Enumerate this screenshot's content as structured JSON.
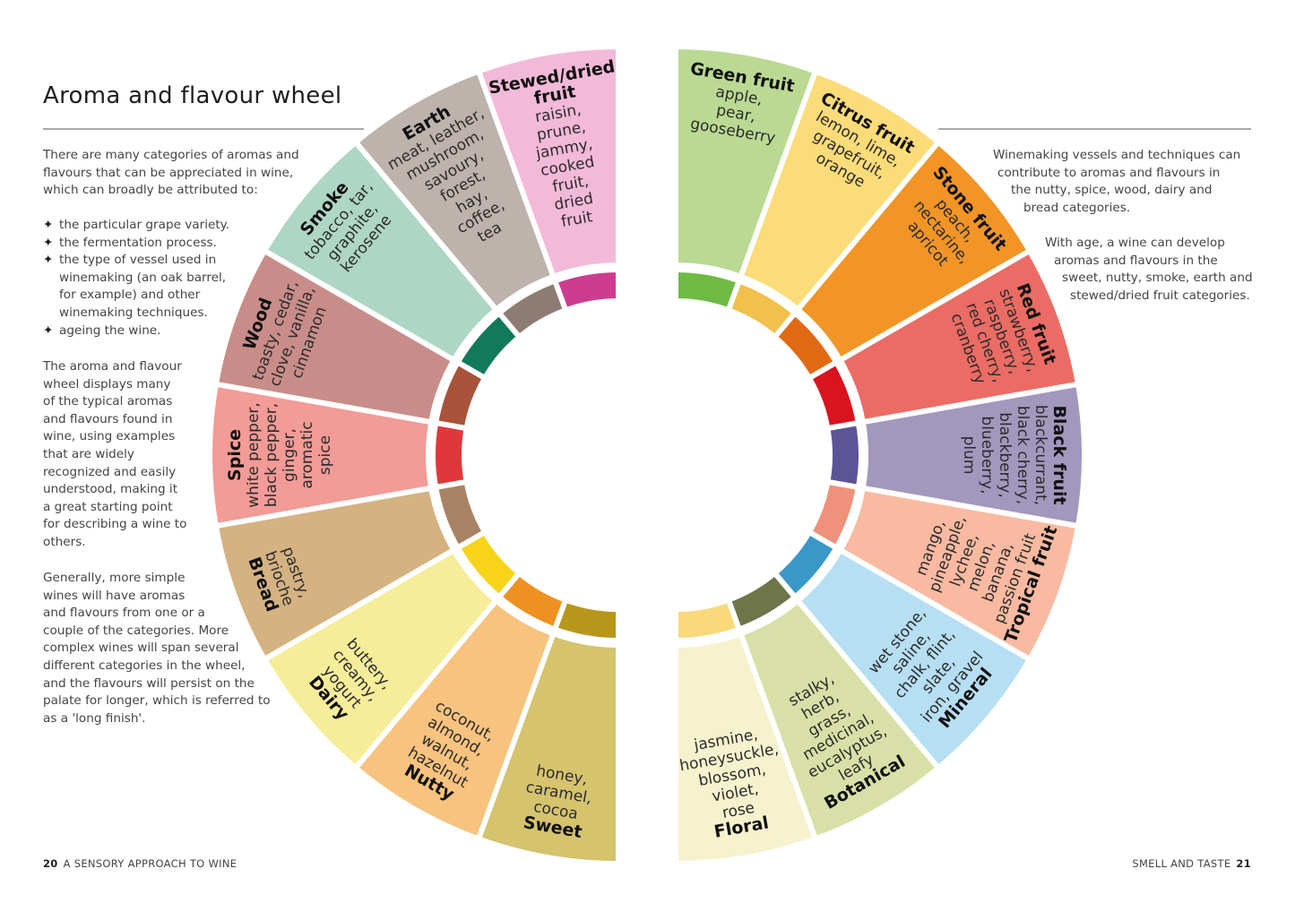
{
  "left_page": {
    "title": "Aroma and flavour wheel",
    "intro_lines": [
      "There are many categories of aromas and",
      "flavours that can be appreciated in wine,",
      "which can broadly be attributed to:"
    ],
    "bullets": [
      [
        "the particular grape variety."
      ],
      [
        "the fermentation process."
      ],
      [
        "the type of vessel used in",
        "winemaking (an oak barrel,",
        "for example) and other",
        "winemaking techniques."
      ],
      [
        "ageing the wine."
      ]
    ],
    "bullet_icon": "four-point-star-icon",
    "para2_lines": [
      "The aroma and flavour",
      "wheel displays many",
      "of the typical aromas",
      "and flavours found in",
      "wine, using examples",
      "that are widely",
      "recognized and easily",
      "understood, making it",
      "a great starting point",
      "for describing a wine to",
      "others."
    ],
    "para3_lines": [
      "Generally, more simple",
      "wines will have aromas",
      "and flavours from one or a",
      "couple of the categories. More",
      "complex wines will span several",
      "different categories in the wheel,",
      "and the flavours will persist on the",
      "palate for longer, which is referred to",
      "as a 'long finish'."
    ],
    "page_number": "20",
    "running_head": "A SENSORY APPROACH TO WINE"
  },
  "right_page": {
    "para1_lines": [
      "Winemaking vessels and techniques can",
      "contribute to aromas and flavours in",
      "the nutty, spice, wood, dairy and",
      "bread categories."
    ],
    "para2_lines": [
      "With age, a wine can develop",
      "aromas and flavours in the",
      "sweet, nutty, smoke, earth and",
      "stewed/dried fruit categories."
    ],
    "page_number": "21",
    "running_head": "SMELL AND TASTE"
  },
  "wheel": {
    "left": [
      {
        "title": [
          "Stewed/dried",
          "fruit"
        ],
        "desc": [
          "raisin,",
          "prune,",
          "jammy,",
          "cooked",
          "fruit,",
          "dried",
          "fruit"
        ],
        "color": "#f3b9d8",
        "ring": "#cc3d8f"
      },
      {
        "title": [
          "Earth"
        ],
        "desc": [
          "meat, leather,",
          "mushroom,",
          "savoury,",
          "forest,",
          "hay,",
          "coffee,",
          "tea"
        ],
        "color": "#bdb2ac",
        "ring": "#8e7c74"
      },
      {
        "title": [
          "Smoke"
        ],
        "desc": [
          "tobacco, tar,",
          "graphite,",
          "kerosene"
        ],
        "color": "#aed6c5",
        "ring": "#127a5b"
      },
      {
        "title": [
          "Wood"
        ],
        "desc": [
          "toasty, cedar,",
          "clove, vanilla,",
          "cinnamon"
        ],
        "color": "#c98d89",
        "ring": "#a8533a"
      },
      {
        "title": [
          "Spice"
        ],
        "desc": [
          "white pepper,",
          "black pepper,",
          "ginger,",
          "aromatic",
          "spice"
        ],
        "color": "#f29b97",
        "ring": "#e0383a"
      },
      {
        "title": [
          "Bread"
        ],
        "desc": [
          "pastry,",
          "brioche"
        ],
        "color": "#d4b282",
        "ring": "#a88366"
      },
      {
        "title": [
          "Dairy"
        ],
        "desc": [
          "buttery,",
          "creamy,",
          "yogurt"
        ],
        "color": "#f6ed9b",
        "ring": "#f7d41a"
      },
      {
        "title": [
          "Nutty"
        ],
        "desc": [
          "coconut,",
          "almond,",
          "walnut,",
          "hazelnut"
        ],
        "color": "#f8c37f",
        "ring": "#ef9120"
      },
      {
        "title": [
          "Sweet"
        ],
        "desc": [
          "honey,",
          "caramel,",
          "cocoa"
        ],
        "color": "#d5c36d",
        "ring": "#b8961a"
      }
    ],
    "right": [
      {
        "title": [
          "Green fruit"
        ],
        "desc": [
          "apple,",
          "pear,",
          "gooseberry"
        ],
        "color": "#bad993",
        "ring": "#6fba45"
      },
      {
        "title": [
          "Citrus fruit"
        ],
        "desc": [
          "lemon, lime,",
          "grapefruit,",
          "orange"
        ],
        "color": "#fcdc79",
        "ring": "#f2c04c"
      },
      {
        "title": [
          "Stone fruit"
        ],
        "desc": [
          "peach,",
          "nectarine,",
          "apricot"
        ],
        "color": "#f29526",
        "ring": "#e06a14"
      },
      {
        "title": [
          "Red fruit"
        ],
        "desc": [
          "strawberry,",
          "raspberry,",
          "red cherry,",
          "cranberry"
        ],
        "color": "#eb6c64",
        "ring": "#d8141f"
      },
      {
        "title": [
          "Black fruit"
        ],
        "desc": [
          "blackcurrant,",
          "black cherry,",
          "blackberry,",
          "blueberry,",
          "plum"
        ],
        "color": "#a297bd",
        "ring": "#5c5497"
      },
      {
        "title": [
          "Tropical fruit"
        ],
        "desc": [
          "mango,",
          "pineapple,",
          "lychee,",
          "melon,",
          "banana,",
          "passion fruit"
        ],
        "color": "#f9baa1",
        "ring": "#f0917b"
      },
      {
        "title": [
          "Mineral"
        ],
        "desc": [
          "wet stone,",
          "saline,",
          "chalk, flint,",
          "slate,",
          "iron, gravel"
        ],
        "color": "#b6dff3",
        "ring": "#3a98c8"
      },
      {
        "title": [
          "Botanical"
        ],
        "desc": [
          "stalky,",
          "herb,",
          "grass,",
          "medicinal,",
          "eucalyptus,",
          "leafy"
        ],
        "color": "#d9e0a7",
        "ring": "#6e7548"
      },
      {
        "title": [
          "Floral"
        ],
        "desc": [
          "jasmine,",
          "honeysuckle,",
          "blossom,",
          "violet,",
          "rose"
        ],
        "color": "#f6f2ce",
        "ring": "#fad97b"
      }
    ]
  }
}
